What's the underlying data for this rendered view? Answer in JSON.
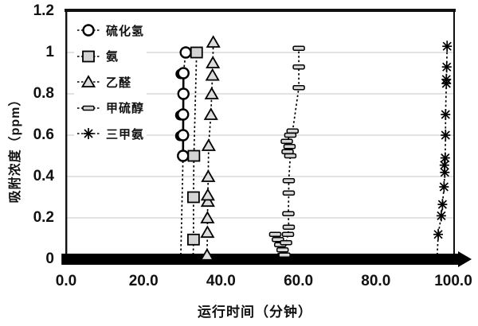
{
  "page": {
    "background_color": "#ffffff",
    "foreground_color": "#000000",
    "gridline_color": "#d9d9d9",
    "marker_fill_gray": "#d6d6d6"
  },
  "chart_data": {
    "type": "scatter",
    "title": "",
    "xlabel": "运行时间（分钟）",
    "ylabel": "吸附浓度（ppm）",
    "xlim": [
      0,
      100
    ],
    "ylim": [
      0,
      1.2
    ],
    "x_ticks": [
      "0.0",
      "20.0",
      "40.0",
      "60.0",
      "80.0",
      "100.0"
    ],
    "x_tick_values": [
      0,
      20,
      40,
      60,
      80,
      100
    ],
    "y_ticks": [
      "0",
      "0.2",
      "0.4",
      "0.6",
      "0.8",
      "1",
      "1.2"
    ],
    "y_tick_values": [
      0,
      0.2,
      0.4,
      0.6,
      0.8,
      1,
      1.2
    ],
    "grid": "horizontal",
    "legend_position": "upper-left-inside",
    "line_style": "dashed",
    "zero_band": {
      "note": "thick black band of overlapped markers at 0 ppm ending in right-pointing arrow tip",
      "x_start_min": -1.2,
      "x_end_min": 104,
      "value_ppm": 0
    },
    "series": [
      {
        "name": "硫化氢",
        "marker": "circle",
        "fill": "#ffffff",
        "drop_x": 29.6,
        "solid_overlay": [
          [
            30.2,
            0.5
          ],
          [
            30.3,
            0.9
          ]
        ],
        "points": [
          [
            30.2,
            0.5
          ],
          [
            30.2,
            0.6,
            1
          ],
          [
            30.2,
            0.7,
            1
          ],
          [
            30.3,
            0.8
          ],
          [
            30.3,
            0.9,
            1
          ],
          [
            30.9,
            1.0
          ]
        ]
      },
      {
        "name": "氨",
        "marker": "square",
        "fill": "#d4d4d4",
        "drop_x": 32.8,
        "points": [
          [
            32.9,
            0.095
          ],
          [
            32.9,
            0.3
          ],
          [
            33.0,
            0.5
          ],
          [
            33.7,
            1.0
          ]
        ]
      },
      {
        "name": "乙醛",
        "marker": "triangle",
        "fill": "#dcdcdc",
        "drop_x": 36.3,
        "points": [
          [
            36.4,
            0.02
          ],
          [
            36.5,
            0.13
          ],
          [
            36.5,
            0.2
          ],
          [
            36.6,
            0.28
          ],
          [
            36.6,
            0.31
          ],
          [
            36.7,
            0.4
          ],
          [
            36.8,
            0.55
          ],
          [
            37.4,
            0.7
          ],
          [
            37.6,
            0.8
          ],
          [
            37.8,
            0.89
          ],
          [
            37.9,
            0.95
          ],
          [
            38.0,
            1.05
          ]
        ]
      },
      {
        "name": "甲硫醇",
        "marker": "hbar",
        "fill": "#d8d8d8",
        "drop_x": 55.0,
        "points": [
          [
            54.0,
            0.12
          ],
          [
            54.7,
            0.095
          ],
          [
            55.3,
            0.07
          ],
          [
            55.9,
            0.045
          ],
          [
            56.4,
            0.02
          ],
          [
            56.8,
            0.08
          ],
          [
            57.3,
            0.12
          ],
          [
            57.5,
            0.155
          ],
          [
            57.4,
            0.22
          ],
          [
            57.5,
            0.32
          ],
          [
            57.5,
            0.38
          ],
          [
            57.9,
            0.5
          ],
          [
            57.2,
            0.52
          ],
          [
            57.7,
            0.545
          ],
          [
            57.0,
            0.57
          ],
          [
            57.9,
            0.6
          ],
          [
            58.5,
            0.62
          ],
          [
            60.1,
            0.83
          ],
          [
            60.1,
            0.93
          ],
          [
            60.1,
            1.02
          ]
        ]
      },
      {
        "name": "三甲氨",
        "marker": "asterisk",
        "fill": "none",
        "drop_x": 95.8,
        "points": [
          [
            96.1,
            0.12
          ],
          [
            96.9,
            0.21
          ],
          [
            97.2,
            0.265
          ],
          [
            97.6,
            0.35
          ],
          [
            97.8,
            0.42
          ],
          [
            97.7,
            0.455
          ],
          [
            97.9,
            0.49
          ],
          [
            98.0,
            0.6
          ],
          [
            98.0,
            0.7
          ],
          [
            98.2,
            0.85
          ],
          [
            98.2,
            0.87
          ],
          [
            98.3,
            0.93
          ],
          [
            98.4,
            1.03
          ]
        ]
      }
    ]
  }
}
